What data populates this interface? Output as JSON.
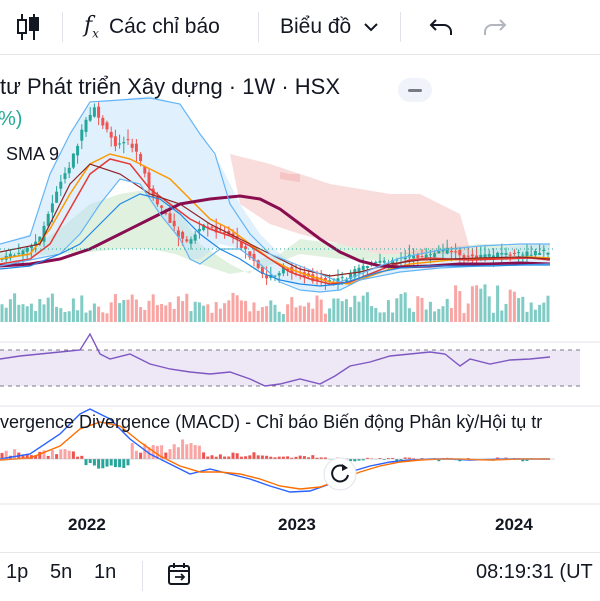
{
  "toolbar": {
    "candle_icon": "candlestick-icon",
    "indicators_label": "Các chỉ báo",
    "chart_type_label": "Biểu đồ",
    "undo_icon": "undo-icon",
    "redo_icon": "redo-icon"
  },
  "symbol": {
    "title": "tư Phát triển Xây dựng · 1W · HSX",
    "change_pct": "%)",
    "sma_label": "SMA 9"
  },
  "macd": {
    "label": "vergence Divergence (MACD) - Chỉ báo Biến động Phân kỳ/Hội tụ tr"
  },
  "timeline": {
    "labels": [
      "2022",
      "2023",
      "2024"
    ]
  },
  "bottom_bar": {
    "intervals": [
      "1p",
      "5n",
      "1n"
    ],
    "goto_icon": "goto-date-icon",
    "clock": "08:19:31 (UT"
  },
  "colors": {
    "up": "#26a69a",
    "down": "#ef5350",
    "sma": "#7b1fa2",
    "rsi": "#7e57c2",
    "macd": "#2962ff",
    "signal": "#ff6d00"
  }
}
